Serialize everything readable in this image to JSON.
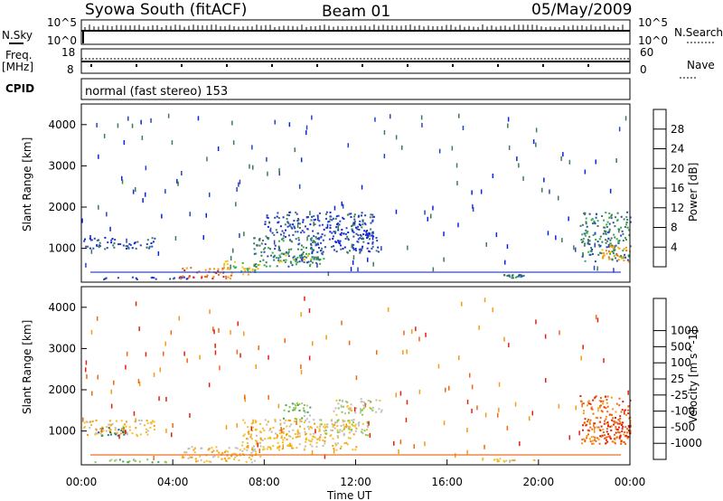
{
  "header": {
    "station": "Syowa South (fitACF)",
    "beam": "Beam 01",
    "date": "05/May/2009"
  },
  "side_labels": {
    "nsky": "N.Sky",
    "freq": "Freq.",
    "freq_unit": "[MHz]",
    "cpid": "CPID",
    "nsearch": "N.Search",
    "nave": "Nave"
  },
  "cpid_text": "normal (fast stereo) 153",
  "noise_ticks": {
    "top": "10^5",
    "bottom": "10^0"
  },
  "freq_ticks": {
    "top": "18",
    "bottom": "8"
  },
  "nave_ticks": {
    "top": "60",
    "bottom": "0"
  },
  "colors": {
    "power": [
      "#0b22e0",
      "#2a43c0",
      "#3b7a5e",
      "#2fae4a",
      "#f2c21a",
      "#f39a14",
      "#ec6a12",
      "#e11e12"
    ],
    "velocity": [
      "#e1200f",
      "#ee6716",
      "#f49d12",
      "#f5be2a",
      "#bebebe",
      "#86c83e",
      "#3fa64a",
      "#2e7a6a",
      "#2a55a8",
      "#1232c8"
    ]
  },
  "chart_data": [
    {
      "type": "heatmap",
      "panel": "power",
      "xlabel": "",
      "ylabel": "Slant Range [km]",
      "colorbar_label": "Power [dB]",
      "colorbar_ticks": [
        "4",
        "8",
        "12",
        "16",
        "20",
        "24",
        "28"
      ],
      "y_ticks": [
        "1000",
        "2000",
        "3000",
        "4000"
      ],
      "xlim_hours": [
        0,
        24
      ],
      "ylim_km": [
        180,
        4500
      ],
      "blobs": [
        {
          "t0": 0.0,
          "t1": 3.2,
          "r0": 1000,
          "r1": 1280,
          "level": 1
        },
        {
          "t0": 0.5,
          "t1": 4.8,
          "r0": 260,
          "r1": 320,
          "level": 1
        },
        {
          "t0": 4.3,
          "t1": 6.6,
          "r0": 280,
          "r1": 560,
          "level": 6
        },
        {
          "t0": 6.0,
          "t1": 7.8,
          "r0": 380,
          "r1": 720,
          "level": 4
        },
        {
          "t0": 7.5,
          "t1": 10.5,
          "r0": 560,
          "r1": 1300,
          "level": 2
        },
        {
          "t0": 8.6,
          "t1": 10.6,
          "r0": 680,
          "r1": 900,
          "level": 3
        },
        {
          "t0": 8.0,
          "t1": 12.8,
          "r0": 1300,
          "r1": 1900,
          "level": 1
        },
        {
          "t0": 10.0,
          "t1": 13.0,
          "r0": 900,
          "r1": 1400,
          "level": 1
        },
        {
          "t0": 18.3,
          "t1": 19.4,
          "r0": 300,
          "r1": 380,
          "level": 2
        },
        {
          "t0": 21.8,
          "t1": 24.0,
          "r0": 700,
          "r1": 1900,
          "level": 2
        },
        {
          "t0": 22.7,
          "t1": 24.0,
          "r0": 700,
          "r1": 1100,
          "level": 5
        }
      ]
    },
    {
      "type": "heatmap",
      "panel": "velocity",
      "xlabel": "Time UT",
      "ylabel": "Slant Range [km]",
      "colorbar_label": "Velocity [m s^-1]",
      "colorbar_ticks": [
        "-1000",
        "-500",
        "-100",
        "-25",
        "25",
        "100",
        "500",
        "1000"
      ],
      "y_ticks": [
        "1000",
        "2000",
        "3000",
        "4000"
      ],
      "x_ticks": [
        "00:00",
        "04:00",
        "08:00",
        "12:00",
        "16:00",
        "20:00",
        "00:00"
      ],
      "xlim_hours": [
        0,
        24
      ],
      "ylim_km": [
        180,
        4500
      ],
      "blobs": [
        {
          "t0": 0.0,
          "t1": 3.2,
          "r0": 900,
          "r1": 1280,
          "level": 3
        },
        {
          "t0": 0.6,
          "t1": 2.0,
          "r0": 900,
          "r1": 1100,
          "level": 7
        },
        {
          "t0": 0.4,
          "t1": 4.0,
          "r0": 260,
          "r1": 330,
          "level": 5
        },
        {
          "t0": 4.3,
          "t1": 7.8,
          "r0": 260,
          "r1": 640,
          "level": 3
        },
        {
          "t0": 7.0,
          "t1": 12.0,
          "r0": 560,
          "r1": 1300,
          "level": 3
        },
        {
          "t0": 10.4,
          "t1": 12.5,
          "r0": 900,
          "r1": 1300,
          "level": 4
        },
        {
          "t0": 8.8,
          "t1": 10.0,
          "r0": 1300,
          "r1": 1700,
          "level": 5
        },
        {
          "t0": 11.0,
          "t1": 13.2,
          "r0": 1400,
          "r1": 1800,
          "level": 4
        },
        {
          "t0": 17.5,
          "t1": 19.8,
          "r0": 270,
          "r1": 360,
          "level": 3
        },
        {
          "t0": 21.8,
          "t1": 24.0,
          "r0": 700,
          "r1": 1900,
          "level": 1
        },
        {
          "t0": 22.6,
          "t1": 24.0,
          "r0": 700,
          "r1": 1200,
          "level": 0
        }
      ]
    }
  ]
}
